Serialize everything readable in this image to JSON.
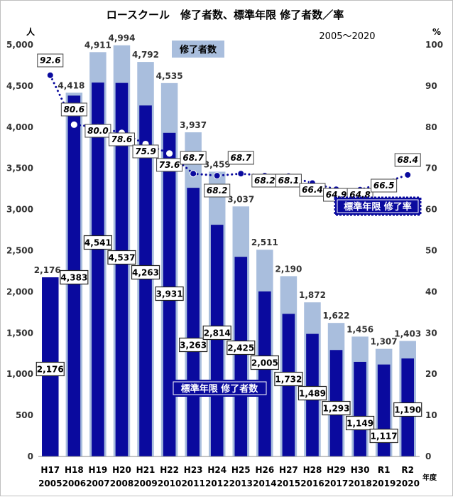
{
  "chart_data": {
    "type": "bar+line",
    "title": "ロースクール　修了者数、標準年限 修了者数／率",
    "subtitle": "2005～2020",
    "y_left_unit": "人",
    "y_right_unit": "%",
    "x_unit": "年度",
    "ylim_left": [
      0,
      5000
    ],
    "ylim_right": [
      0,
      100
    ],
    "y_left_ticks": [
      "0",
      "500",
      "1,000",
      "1,500",
      "2,000",
      "2,500",
      "3,000",
      "3,500",
      "4,000",
      "4,500",
      "5,000"
    ],
    "y_right_ticks": [
      "0",
      "10",
      "20",
      "30",
      "40",
      "50",
      "60",
      "70",
      "80",
      "90",
      "100"
    ],
    "categories": [
      [
        "H17",
        "2005"
      ],
      [
        "H18",
        "2006"
      ],
      [
        "H19",
        "2007"
      ],
      [
        "H20",
        "2008"
      ],
      [
        "H21",
        "2009"
      ],
      [
        "H22",
        "2010"
      ],
      [
        "H23",
        "2011"
      ],
      [
        "H24",
        "2012"
      ],
      [
        "H25",
        "2013"
      ],
      [
        "H26",
        "2014"
      ],
      [
        "H27",
        "2015"
      ],
      [
        "H28",
        "2016"
      ],
      [
        "H29",
        "2017"
      ],
      [
        "H30",
        "2018"
      ],
      [
        "R1",
        "2019"
      ],
      [
        "R2",
        "2020"
      ]
    ],
    "series": [
      {
        "name": "修了者数",
        "kind": "bar",
        "color": "#a9bedd",
        "values": [
          2176,
          4418,
          4911,
          4994,
          4792,
          4535,
          3937,
          3459,
          3037,
          2511,
          2190,
          1872,
          1622,
          1456,
          1307,
          1403
        ],
        "labels": [
          "2,176",
          "4,418",
          "4,911",
          "4,994",
          "4,792",
          "4,535",
          "3,937",
          "3,459",
          "3,037",
          "2,511",
          "2,190",
          "1,872",
          "1,622",
          "1,456",
          "1,307",
          "1,403"
        ]
      },
      {
        "name": "標準年限 修了者数",
        "kind": "bar",
        "color": "#0a0a9e",
        "values": [
          2176,
          4383,
          4541,
          4537,
          4263,
          3931,
          3263,
          2814,
          2425,
          2005,
          1732,
          1489,
          1293,
          1149,
          1117,
          1190
        ],
        "labels": [
          "2,176",
          "4,383",
          "4,541",
          "4,537",
          "4,263",
          "3,931",
          "3,263",
          "2,814",
          "2,425",
          "2,005",
          "1,732",
          "1,489",
          "1,293",
          "1,149",
          "1,117",
          "1,190"
        ]
      },
      {
        "name": "標準年限 修了率",
        "kind": "line",
        "axis": "right",
        "color": "#0a0a9e",
        "values": [
          92.6,
          80.6,
          80.0,
          78.6,
          75.9,
          73.6,
          68.7,
          68.2,
          68.7,
          68.2,
          68.1,
          66.4,
          64.9,
          64.8,
          66.5,
          68.4
        ],
        "labels": [
          "92.6",
          "80.6",
          "80.0",
          "78.6",
          "75.9",
          "73.6",
          "68.7",
          "68.2",
          "68.7",
          "68.2",
          "68.1",
          "66.4",
          "64.9",
          "64.8",
          "66.5",
          "68.4"
        ]
      }
    ],
    "legend": {
      "total_label": "修了者数",
      "standard_label": "標準年限 修了者数",
      "rate_label": "標準年限 修了率"
    }
  }
}
